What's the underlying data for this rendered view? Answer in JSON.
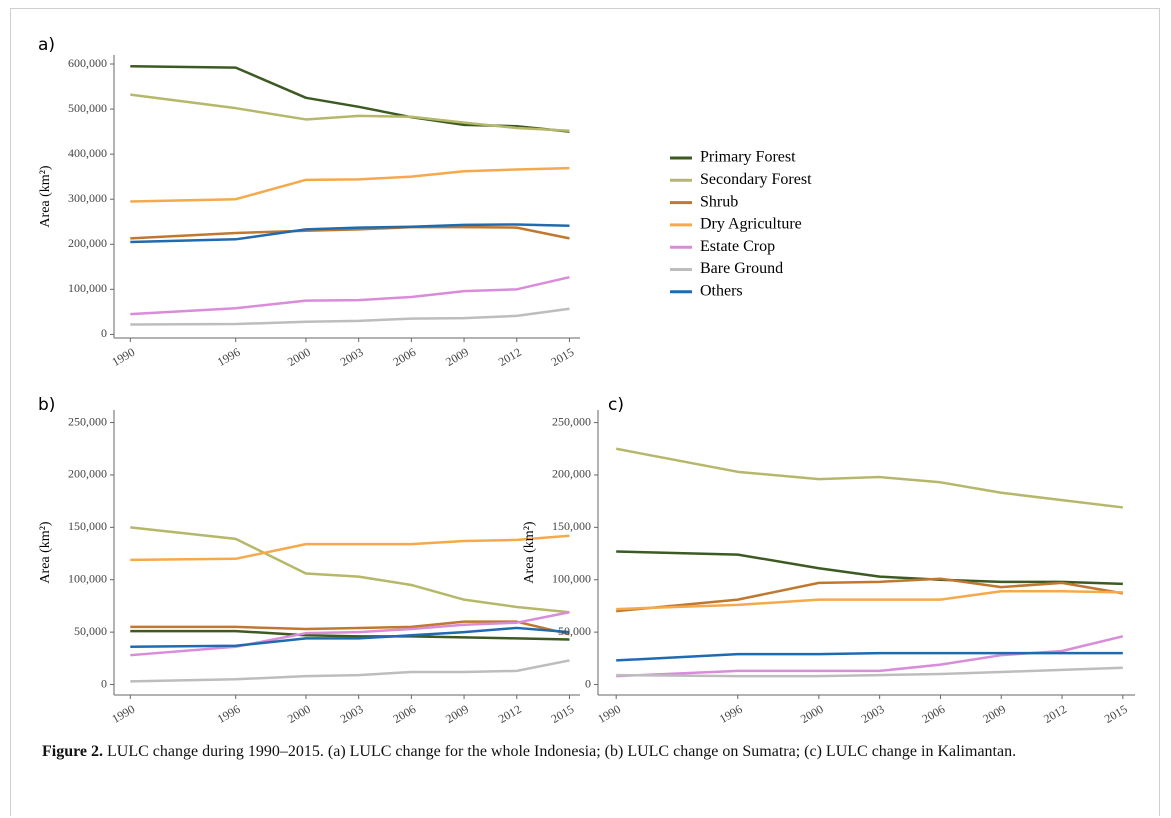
{
  "chart_data": [
    {
      "type": "line",
      "panel_label": "a)",
      "y_label": "Area (km²)",
      "legend": "right",
      "x": [
        1990,
        1996,
        2000,
        2003,
        2006,
        2009,
        2012,
        2015
      ],
      "xlim": [
        1989.3,
        2015.6
      ],
      "xticks": [
        1990,
        1996,
        2000,
        2003,
        2006,
        2009,
        2012,
        2015
      ],
      "ylim": [
        -8000,
        620000
      ],
      "yticks": [
        0,
        {
          "value": 100000,
          "label": "100,000"
        },
        {
          "value": 200000,
          "label": "200,000"
        },
        {
          "value": 300000,
          "label": "300,000"
        },
        {
          "value": 400000,
          "label": "400,000"
        },
        {
          "value": 500000,
          "label": "500,000"
        },
        {
          "value": 600000,
          "label": "600,000"
        }
      ],
      "series": [
        {
          "name": "Primary Forest",
          "color": "#3d5a23",
          "values": [
            595000,
            592000,
            525000,
            505000,
            482000,
            465000,
            462000,
            450000
          ]
        },
        {
          "name": "Secondary Forest",
          "color": "#b5b86a",
          "values": [
            532000,
            502000,
            477000,
            485000,
            483000,
            470000,
            458000,
            452000
          ]
        },
        {
          "name": "Shrub",
          "color": "#c07830",
          "values": [
            213000,
            225000,
            230000,
            233000,
            238000,
            238000,
            237000,
            213000
          ]
        },
        {
          "name": "Dry Agriculture",
          "color": "#f5a94a",
          "values": [
            295000,
            300000,
            343000,
            344000,
            350000,
            362000,
            366000,
            369000
          ]
        },
        {
          "name": "Estate Crop",
          "color": "#d98cd9",
          "values": [
            45000,
            58000,
            75000,
            76000,
            83000,
            96000,
            100000,
            127000
          ]
        },
        {
          "name": "Bare Ground",
          "color": "#bdbdbd",
          "values": [
            22000,
            23000,
            28000,
            30000,
            35000,
            36000,
            41000,
            57000
          ]
        },
        {
          "name": "Others",
          "color": "#1f6bb0",
          "values": [
            205000,
            211000,
            233000,
            237000,
            239000,
            243000,
            244000,
            241000
          ]
        }
      ]
    },
    {
      "type": "line",
      "panel_label": "b)",
      "y_label": "Area (km²)",
      "x": [
        1990,
        1996,
        2000,
        2003,
        2006,
        2009,
        2012,
        2015
      ],
      "xlim": [
        1989.3,
        2015.6
      ],
      "xticks": [
        1990,
        1996,
        2000,
        2003,
        2006,
        2009,
        2012,
        2015
      ],
      "ylim": [
        -10000,
        262000
      ],
      "yticks": [
        0,
        {
          "value": 50000,
          "label": "50,000"
        },
        {
          "value": 100000,
          "label": "100,000"
        },
        {
          "value": 150000,
          "label": "150,000"
        },
        {
          "value": 200000,
          "label": "200,000"
        },
        {
          "value": 250000,
          "label": "250,000"
        }
      ],
      "series": [
        {
          "values": [
            51000,
            51000,
            47000,
            46000,
            46000,
            45000,
            44000,
            43000
          ]
        },
        {
          "values": [
            150000,
            139000,
            106000,
            103000,
            95000,
            81000,
            74000,
            69000
          ]
        },
        {
          "values": [
            55000,
            55000,
            53000,
            54000,
            55000,
            60000,
            60000,
            48000
          ]
        },
        {
          "values": [
            119000,
            120000,
            134000,
            134000,
            134000,
            137000,
            138000,
            142000
          ]
        },
        {
          "values": [
            28000,
            36000,
            49000,
            50000,
            53000,
            57000,
            59000,
            69000
          ]
        },
        {
          "values": [
            3000,
            5000,
            8000,
            9000,
            12000,
            12000,
            13000,
            23000
          ]
        },
        {
          "values": [
            36000,
            37000,
            44000,
            44000,
            47000,
            50000,
            54000,
            50000
          ]
        }
      ]
    },
    {
      "type": "line",
      "panel_label": "c)",
      "y_label": "Area (km²)",
      "x": [
        1990,
        1996,
        2000,
        2003,
        2006,
        2009,
        2012,
        2015
      ],
      "xlim": [
        1989.3,
        2015.6
      ],
      "xticks": [
        1990,
        1996,
        2000,
        2003,
        2006,
        2009,
        2012,
        2015
      ],
      "ylim": [
        -10000,
        262000
      ],
      "yticks": [
        0,
        {
          "value": 50000,
          "label": "50,000"
        },
        {
          "value": 100000,
          "label": "100,000"
        },
        {
          "value": 150000,
          "label": "150,000"
        },
        {
          "value": 200000,
          "label": "200,000"
        },
        {
          "value": 250000,
          "label": "250,000"
        }
      ],
      "series": [
        {
          "values": [
            127000,
            124000,
            111000,
            103000,
            100000,
            98000,
            98000,
            96000
          ]
        },
        {
          "values": [
            225000,
            203000,
            196000,
            198000,
            193000,
            183000,
            176000,
            169000
          ]
        },
        {
          "values": [
            70000,
            81000,
            97000,
            98000,
            101000,
            93000,
            97000,
            87000
          ]
        },
        {
          "values": [
            72000,
            76000,
            81000,
            81000,
            81000,
            89000,
            89000,
            88000
          ]
        },
        {
          "values": [
            8000,
            13000,
            13000,
            13000,
            19000,
            28000,
            32000,
            46000
          ]
        },
        {
          "values": [
            9000,
            8000,
            8000,
            9000,
            10000,
            12000,
            14000,
            16000
          ]
        },
        {
          "values": [
            23000,
            29000,
            29000,
            30000,
            30000,
            30000,
            30000,
            30000
          ]
        }
      ]
    }
  ],
  "caption": {
    "label": "Figure 2.",
    "text": "LULC change during 1990–2015. (a) LULC change for the whole Indonesia; (b) LULC change on Sumatra; (c) LULC change in Kalimantan."
  }
}
